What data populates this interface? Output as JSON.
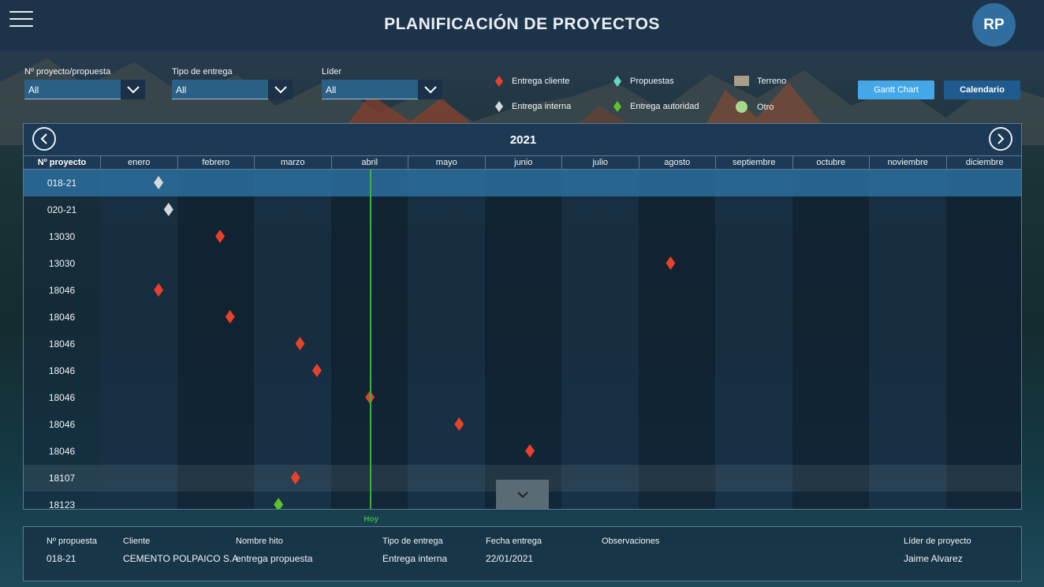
{
  "header": {
    "title": "PLANIFICACIÓN DE PROYECTOS",
    "avatar_initials": "RP"
  },
  "filters": [
    {
      "label": "Nº proyecto/propuesta",
      "value": "All"
    },
    {
      "label": "Tipo de entrega",
      "value": "All"
    },
    {
      "label": "Líder",
      "value": "All"
    }
  ],
  "legend": {
    "entrega_cliente": {
      "label": "Entrega cliente",
      "color": "#e8402a"
    },
    "entrega_interna": {
      "label": "Entrega interna",
      "color": "#d6d9dc"
    },
    "propuestas": {
      "label": "Propuestas",
      "color": "#5fd9c0"
    },
    "entrega_autoridad": {
      "label": "Entrega autoridad",
      "color": "#5ec22a"
    },
    "terreno": {
      "label": "Terreno",
      "color": "#a79f8a"
    },
    "otro": {
      "label": "Otro",
      "color": "#a8d98a"
    }
  },
  "buttons": {
    "gantt": "Gantt Chart",
    "calendario": "Calendario"
  },
  "gantt": {
    "year": "2021",
    "project_header": "Nº proyecto",
    "months": [
      "enero",
      "febrero",
      "marzo",
      "abril",
      "mayo",
      "junio",
      "julio",
      "agosto",
      "septiembre",
      "octubre",
      "noviembre",
      "diciembre"
    ],
    "today_label": "Hoy",
    "today_month_fraction": 3.52,
    "rows": [
      {
        "project": "018-21",
        "type": "entrega_interna",
        "month_fraction": 0.76,
        "selected": true
      },
      {
        "project": "020-21",
        "type": "entrega_interna",
        "month_fraction": 0.89
      },
      {
        "project": "13030",
        "type": "entrega_cliente",
        "month_fraction": 1.56
      },
      {
        "project": "13030",
        "type": "entrega_cliente",
        "month_fraction": 7.42
      },
      {
        "project": "18046",
        "type": "entrega_cliente",
        "month_fraction": 0.76
      },
      {
        "project": "18046",
        "type": "entrega_cliente",
        "month_fraction": 1.69
      },
      {
        "project": "18046",
        "type": "entrega_cliente",
        "month_fraction": 2.6
      },
      {
        "project": "18046",
        "type": "entrega_cliente",
        "month_fraction": 2.82
      },
      {
        "project": "18046",
        "type": "entrega_cliente",
        "month_fraction": 3.51
      },
      {
        "project": "18046",
        "type": "entrega_cliente",
        "month_fraction": 4.67
      },
      {
        "project": "18046",
        "type": "entrega_cliente",
        "month_fraction": 5.59
      },
      {
        "project": "18107",
        "type": "entrega_cliente",
        "month_fraction": 2.54,
        "shaded": true
      },
      {
        "project": "18123",
        "type": "entrega_autoridad",
        "month_fraction": 2.32
      }
    ]
  },
  "detail": {
    "headers": [
      "Nº propuesta",
      "Cliente",
      "Nombre hito",
      "Tipo de entrega",
      "Fecha entrega",
      "Observaciones",
      "Líder de proyecto"
    ],
    "values": [
      "018-21",
      "CEMENTO POLPAICO S.A.",
      "entrega propuesta",
      "Entrega interna",
      "22/01/2021",
      "",
      "Jaime Alvarez"
    ]
  },
  "icons": {
    "menu": "hamburger-menu-icon",
    "prev": "chevron-left-icon",
    "next": "chevron-right-icon",
    "dropdown": "chevron-down-icon"
  }
}
